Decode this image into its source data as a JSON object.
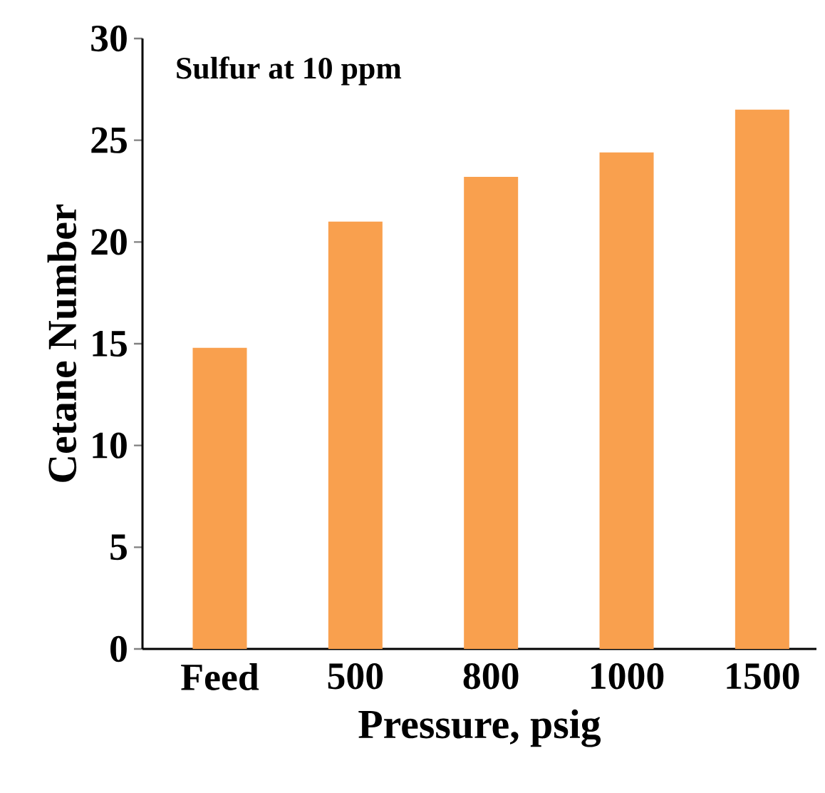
{
  "chart_data": {
    "type": "bar",
    "xlabel": "Pressure, psig",
    "ylabel": "Cetane Number",
    "categories": [
      "Feed",
      "500",
      "800",
      "1000",
      "1500"
    ],
    "values": [
      14.8,
      21.0,
      23.2,
      24.4,
      26.5
    ],
    "color": "#f9a04e",
    "ylim": [
      0,
      30
    ],
    "yticks": [
      0,
      5,
      10,
      15,
      20,
      25,
      30
    ],
    "annotations": [
      "Sulfur at 10 ppm"
    ]
  }
}
